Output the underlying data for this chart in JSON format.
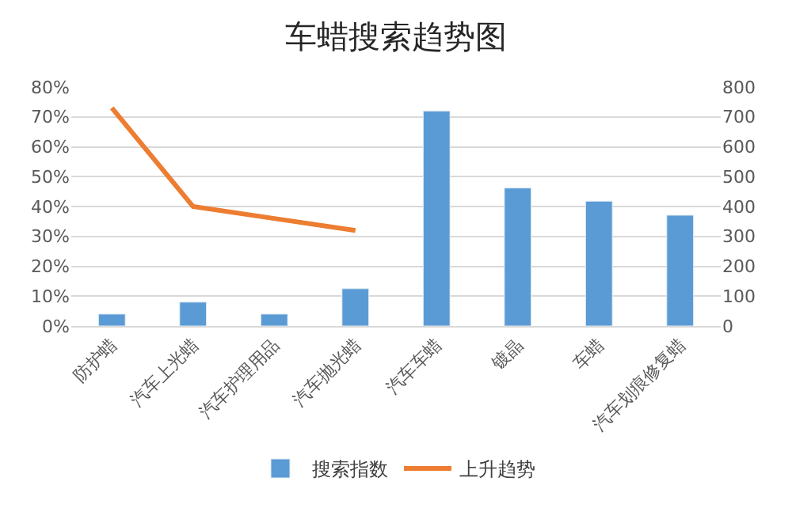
{
  "chart_data": {
    "type": "bar",
    "title": "车蜡搜索趋势图",
    "categories": [
      "防护蜡",
      "汽车上光蜡",
      "汽车护理用品",
      "汽车抛光蜡",
      "汽车车蜡",
      "镀晶",
      "车蜡",
      "汽车划痕修复蜡"
    ],
    "series": [
      {
        "name": "搜索指数",
        "axis": "y2",
        "color": "#5b9bd5",
        "values": [
          40,
          80,
          40,
          125,
          720,
          462,
          418,
          371
        ]
      },
      {
        "name": "上升趋势",
        "type": "line",
        "color": "#ed7d31",
        "values": [
          73,
          40,
          36,
          32,
          null,
          null,
          null,
          null
        ]
      }
    ],
    "ylim": [
      0,
      80
    ],
    "yticks": [
      {
        "value": 0,
        "label": "0%"
      },
      {
        "value": 10,
        "label": "10%"
      },
      {
        "value": 20,
        "label": "20%"
      },
      {
        "value": 30,
        "label": "30%"
      },
      {
        "value": 40,
        "label": "40%"
      },
      {
        "value": 50,
        "label": "50%"
      },
      {
        "value": 60,
        "label": "60%"
      },
      {
        "value": 70,
        "label": "70%"
      },
      {
        "value": 80,
        "label": "80%"
      }
    ],
    "y2lim": [
      0,
      800
    ],
    "y2ticks": [
      0,
      100,
      200,
      300,
      400,
      500,
      600,
      700,
      800
    ],
    "grid": "y",
    "legend": "bottom",
    "marker": "none",
    "line_style": "solid"
  }
}
